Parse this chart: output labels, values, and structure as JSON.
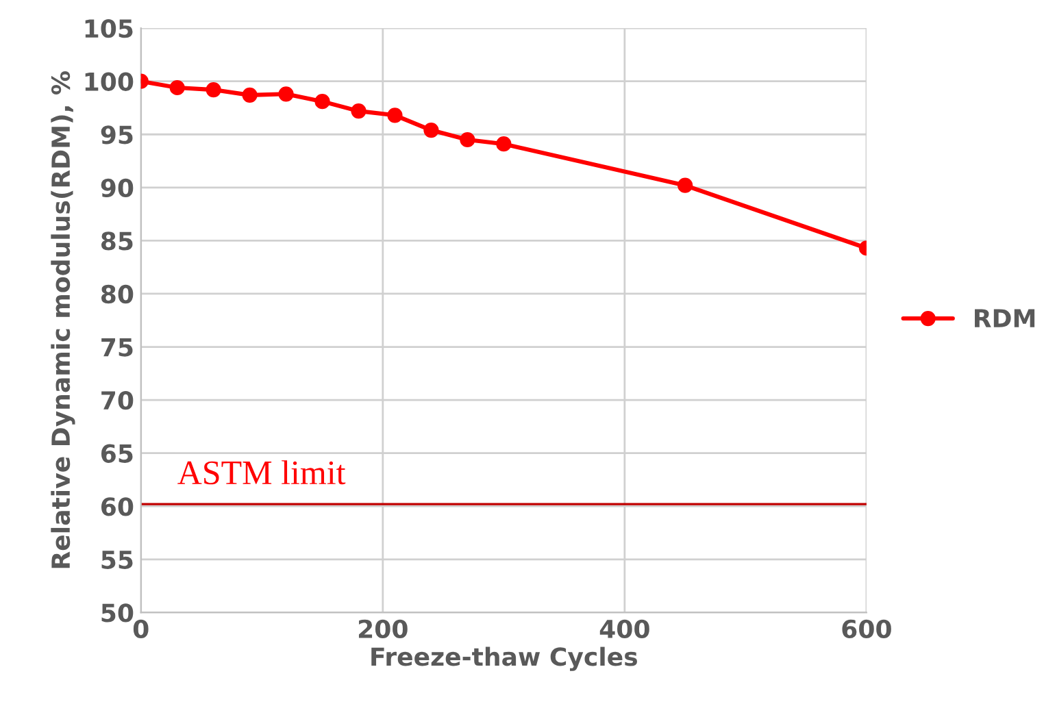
{
  "chart_data": {
    "type": "line",
    "xlabel": "Freeze-thaw Cycles",
    "ylabel": "Relative Dynamic modulus(RDM), %",
    "x": [
      0,
      30,
      60,
      90,
      120,
      150,
      180,
      210,
      240,
      270,
      300,
      450,
      600
    ],
    "series": [
      {
        "name": "RDM",
        "color": "#ff0000",
        "values": [
          100,
          99.4,
          99.2,
          98.7,
          98.8,
          98.1,
          97.2,
          96.8,
          95.4,
          94.5,
          94.1,
          90.2,
          84.3
        ]
      }
    ],
    "xlim": [
      0,
      600
    ],
    "xticks": [
      0,
      200,
      400,
      600
    ],
    "ylim": [
      50,
      105
    ],
    "yticks": [
      50,
      55,
      60,
      65,
      70,
      75,
      80,
      85,
      90,
      95,
      100,
      105
    ],
    "ref_lines": [
      {
        "axis": "y",
        "value": 60.2,
        "label": "ASTM limit",
        "color": "#c00000"
      }
    ],
    "grid": true,
    "legend": "right",
    "marker": "circle",
    "line_style": "solid"
  }
}
